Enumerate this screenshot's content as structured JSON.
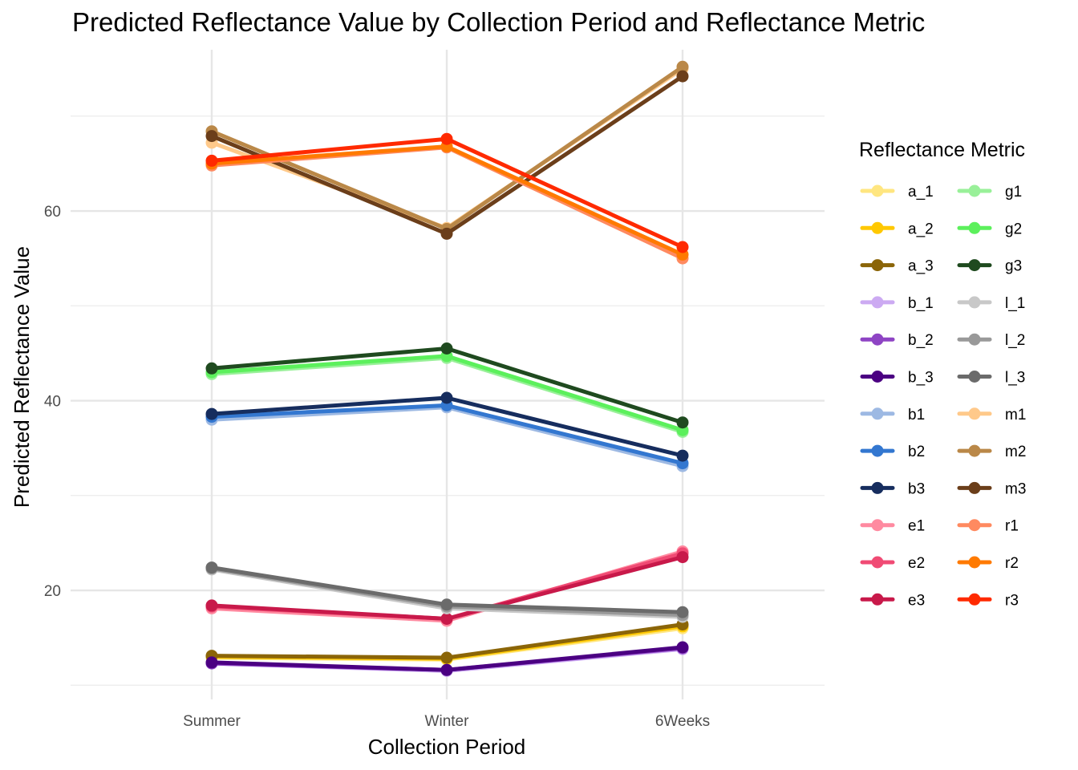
{
  "chart_data": {
    "type": "line",
    "title": "Predicted Reflectance Value by Collection Period and Reflectance Metric",
    "xlabel": "Collection Period",
    "ylabel": "Predicted Reflectance Value",
    "categories": [
      "Summer",
      "Winter",
      "6Weeks"
    ],
    "ylim": [
      8.5,
      77
    ],
    "yticks": [
      20,
      40,
      60
    ],
    "grid": true,
    "legend": {
      "title": "Reflectance Metric",
      "placement": "right",
      "columns": 2
    },
    "series": [
      {
        "name": "a_1",
        "color": "#FFE680",
        "values": [
          12.9,
          12.7,
          16.0
        ]
      },
      {
        "name": "a_2",
        "color": "#FFC800",
        "values": [
          13.0,
          12.8,
          16.2
        ]
      },
      {
        "name": "a_3",
        "color": "#8B6508",
        "values": [
          13.1,
          12.9,
          16.4
        ]
      },
      {
        "name": "b_1",
        "color": "#CCAAF2",
        "values": [
          12.3,
          11.5,
          13.8
        ]
      },
      {
        "name": "b_2",
        "color": "#8E44C4",
        "values": [
          12.3,
          11.6,
          13.9
        ]
      },
      {
        "name": "b_3",
        "color": "#4B0082",
        "values": [
          12.4,
          11.6,
          14.0
        ]
      },
      {
        "name": "b1",
        "color": "#9DB9E3",
        "values": [
          38.0,
          39.3,
          33.1
        ]
      },
      {
        "name": "b2",
        "color": "#3377D0",
        "values": [
          38.3,
          39.5,
          33.4
        ]
      },
      {
        "name": "b3",
        "color": "#162D5E",
        "values": [
          38.6,
          40.3,
          34.2
        ]
      },
      {
        "name": "e1",
        "color": "#FF8AA0",
        "values": [
          18.1,
          16.8,
          24.1
        ]
      },
      {
        "name": "e2",
        "color": "#F04B74",
        "values": [
          18.3,
          17.0,
          23.9
        ]
      },
      {
        "name": "e3",
        "color": "#C8194A",
        "values": [
          18.4,
          17.0,
          23.5
        ]
      },
      {
        "name": "g1",
        "color": "#99F099",
        "values": [
          42.8,
          44.5,
          36.7
        ]
      },
      {
        "name": "g2",
        "color": "#5CF05C",
        "values": [
          43.0,
          44.7,
          36.9
        ]
      },
      {
        "name": "g3",
        "color": "#1F4A1F",
        "values": [
          43.4,
          45.5,
          37.7
        ]
      },
      {
        "name": "l_1",
        "color": "#C8C8C8",
        "values": [
          22.2,
          18.1,
          17.2
        ]
      },
      {
        "name": "l_2",
        "color": "#999999",
        "values": [
          22.3,
          18.3,
          17.4
        ]
      },
      {
        "name": "l_3",
        "color": "#6B6B6B",
        "values": [
          22.4,
          18.5,
          17.7
        ]
      },
      {
        "name": "m1",
        "color": "#FFC98A",
        "values": [
          67.2,
          58.2,
          75.0
        ]
      },
      {
        "name": "m2",
        "color": "#BA8848",
        "values": [
          68.4,
          58.1,
          75.2
        ]
      },
      {
        "name": "m3",
        "color": "#6B3E1A",
        "values": [
          67.9,
          57.6,
          74.2
        ]
      },
      {
        "name": "r1",
        "color": "#FF8A60",
        "values": [
          64.8,
          66.7,
          55.0
        ]
      },
      {
        "name": "r2",
        "color": "#FF7A00",
        "values": [
          65.0,
          66.8,
          55.4
        ]
      },
      {
        "name": "r3",
        "color": "#FF2A00",
        "values": [
          65.3,
          67.6,
          56.2
        ]
      }
    ]
  }
}
